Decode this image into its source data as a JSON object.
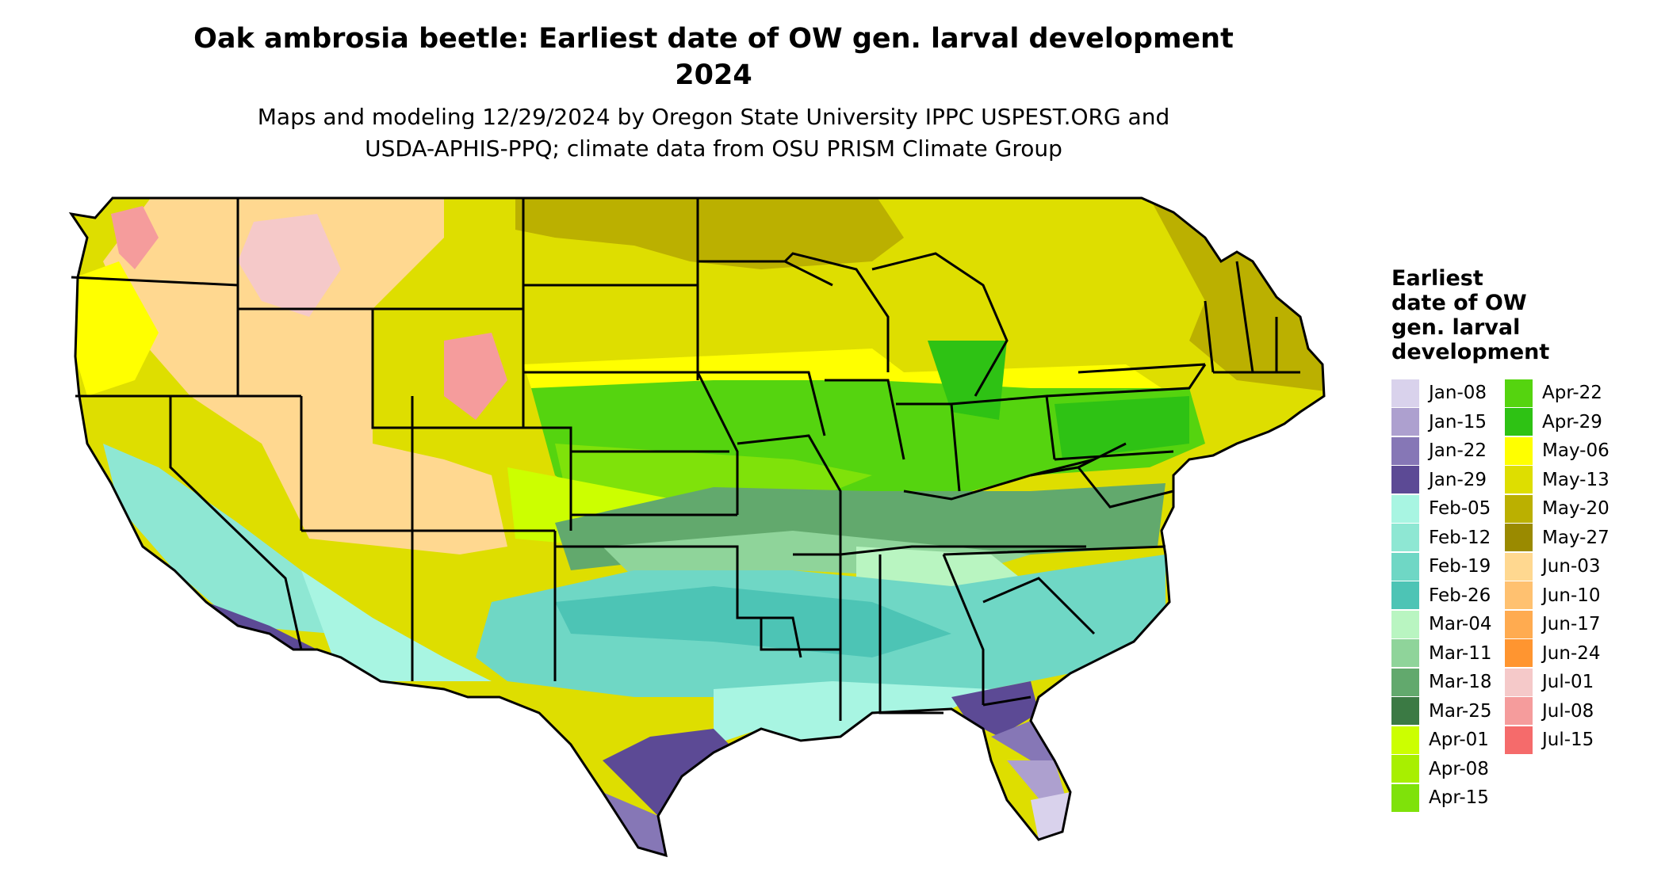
{
  "title_line1": "Oak ambrosia beetle: Earliest date of OW gen. larval development",
  "title_line2": "2024",
  "subtitle_line1": "Maps and modeling 12/29/2024 by Oregon State University IPPC USPEST.ORG and",
  "subtitle_line2": "USDA-APHIS-PPQ; climate data from OSU PRISM Climate Group",
  "legend": {
    "title_lines": [
      "Earliest",
      "date of OW",
      "gen. larval",
      "development"
    ],
    "column1": [
      {
        "label": "Jan-08",
        "color": "#d9d2ec"
      },
      {
        "label": "Jan-15",
        "color": "#ada0cf"
      },
      {
        "label": "Jan-22",
        "color": "#8677b6"
      },
      {
        "label": "Jan-29",
        "color": "#5c4a95"
      },
      {
        "label": "Feb-05",
        "color": "#a8f5e2"
      },
      {
        "label": "Feb-12",
        "color": "#8ee7d3"
      },
      {
        "label": "Feb-19",
        "color": "#6fd7c5"
      },
      {
        "label": "Feb-26",
        "color": "#4dc4b5"
      },
      {
        "label": "Mar-04",
        "color": "#b9f5c1"
      },
      {
        "label": "Mar-11",
        "color": "#8fd49a"
      },
      {
        "label": "Mar-18",
        "color": "#62a96d"
      },
      {
        "label": "Mar-25",
        "color": "#3b7a44"
      },
      {
        "label": "Apr-01",
        "color": "#ccff00"
      },
      {
        "label": "Apr-08",
        "color": "#a8ef00"
      },
      {
        "label": "Apr-15",
        "color": "#7fe20a"
      }
    ],
    "column2": [
      {
        "label": "Apr-22",
        "color": "#55d40f"
      },
      {
        "label": "Apr-29",
        "color": "#2ec214"
      },
      {
        "label": "May-06",
        "color": "#ffff00"
      },
      {
        "label": "May-13",
        "color": "#dede00"
      },
      {
        "label": "May-20",
        "color": "#bbb000"
      },
      {
        "label": "May-27",
        "color": "#9a8a00"
      },
      {
        "label": "Jun-03",
        "color": "#ffd890"
      },
      {
        "label": "Jun-10",
        "color": "#ffc170"
      },
      {
        "label": "Jun-17",
        "color": "#ffab50"
      },
      {
        "label": "Jun-24",
        "color": "#ff9530"
      },
      {
        "label": "Jul-01",
        "color": "#f5c9c9"
      },
      {
        "label": "Jul-08",
        "color": "#f59c9c"
      },
      {
        "label": "Jul-15",
        "color": "#f56b6b"
      }
    ]
  },
  "map": {
    "boundary_color": "#000000",
    "zones": [
      {
        "name": "northern-tier",
        "legend_date": "May-13"
      },
      {
        "name": "rocky-mountains",
        "legend_date": "Jun-03"
      },
      {
        "name": "corn-belt",
        "legend_date": "Apr-22"
      },
      {
        "name": "mid-south",
        "legend_date": "Mar-18"
      },
      {
        "name": "southeast",
        "legend_date": "Feb-19"
      },
      {
        "name": "gulf-coast",
        "legend_date": "Jan-29"
      },
      {
        "name": "south-florida",
        "legend_date": "Jan-08"
      }
    ]
  }
}
